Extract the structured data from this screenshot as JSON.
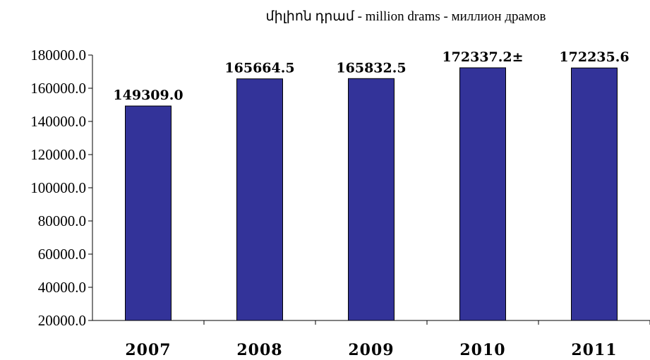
{
  "chart_data": {
    "type": "bar",
    "unit_label": "միլիոն դրամ - million drams - миллион драмов",
    "categories": [
      "2007",
      "2008",
      "2009",
      "2010",
      "2011"
    ],
    "values": [
      149309.0,
      165664.5,
      165832.5,
      172337.2,
      172235.6
    ],
    "data_labels": [
      "149309.0",
      "165664.5",
      "165832.5",
      "172337.2±",
      "172235.6"
    ],
    "ylim": [
      20000,
      180000
    ],
    "yticks": [
      "20000.0",
      "40000.0",
      "60000.0",
      "80000.0",
      "100000.0",
      "120000.0",
      "140000.0",
      "160000.0",
      "180000.0"
    ],
    "ytick_values": [
      20000,
      40000,
      60000,
      80000,
      100000,
      120000,
      140000,
      160000,
      180000
    ],
    "grid": false,
    "legend": "none",
    "bar_color": "#333399"
  }
}
